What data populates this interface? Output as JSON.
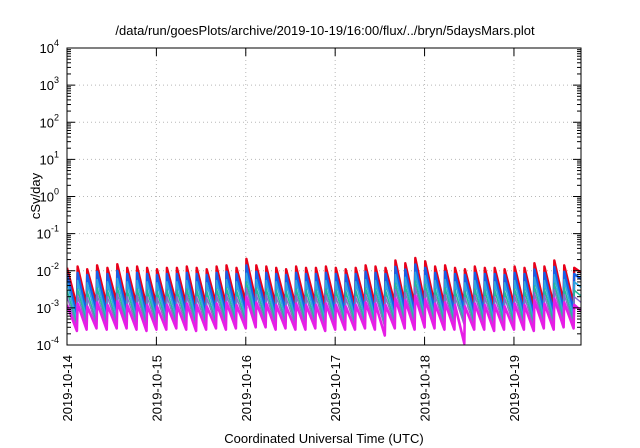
{
  "chart_data": {
    "type": "line",
    "title": "/data/run/goesPlots/archive/2019-10-19/16:00/flux/../bryn/5daysMars.plot",
    "xlabel": "Coordinated Universal Time (UTC)",
    "ylabel": "cSv/day",
    "y_scale": "log",
    "grid": true,
    "legend": "none",
    "xlim": [
      "2019-10-14T00:00",
      "2019-10-19T18:00"
    ],
    "ylim": [
      0.0001,
      10000
    ],
    "x_ticks": [
      "2019-10-14",
      "2019-10-15",
      "2019-10-16",
      "2019-10-17",
      "2019-10-18",
      "2019-10-19"
    ],
    "y_ticks": [
      {
        "base": "10",
        "exp": "-4",
        "value": 0.0001
      },
      {
        "base": "10",
        "exp": "-3",
        "value": 0.001
      },
      {
        "base": "10",
        "exp": "-2",
        "value": 0.01
      },
      {
        "base": "10",
        "exp": "-1",
        "value": 0.1
      },
      {
        "base": "10",
        "exp": "0",
        "value": 1
      },
      {
        "base": "10",
        "exp": "1",
        "value": 10
      },
      {
        "base": "10",
        "exp": "2",
        "value": 100
      },
      {
        "base": "10",
        "exp": "3",
        "value": 1000
      },
      {
        "base": "10",
        "exp": "4",
        "value": 10000
      }
    ],
    "x": [
      "2019-10-14T00:00",
      "2019-10-14T02:40",
      "2019-10-14T02:50",
      "2019-10-14T05:15",
      "2019-10-14T05:25",
      "2019-10-14T07:55",
      "2019-10-14T08:05",
      "2019-10-14T10:40",
      "2019-10-14T10:50",
      "2019-10-14T13:20",
      "2019-10-14T13:30",
      "2019-10-14T16:00",
      "2019-10-14T16:10",
      "2019-10-14T18:40",
      "2019-10-14T18:50",
      "2019-10-14T21:20",
      "2019-10-14T21:30",
      "2019-10-15T00:00",
      "2019-10-15T00:10",
      "2019-10-15T02:40",
      "2019-10-15T02:50",
      "2019-10-15T05:20",
      "2019-10-15T05:30",
      "2019-10-15T08:00",
      "2019-10-15T08:10",
      "2019-10-15T10:40",
      "2019-10-15T10:50",
      "2019-10-15T13:20",
      "2019-10-15T13:30",
      "2019-10-15T16:00",
      "2019-10-15T16:10",
      "2019-10-15T18:40",
      "2019-10-15T18:50",
      "2019-10-15T21:20",
      "2019-10-15T21:30",
      "2019-10-16T00:00",
      "2019-10-16T00:10",
      "2019-10-16T02:40",
      "2019-10-16T02:50",
      "2019-10-16T05:20",
      "2019-10-16T05:30",
      "2019-10-16T08:00",
      "2019-10-16T08:10",
      "2019-10-16T10:40",
      "2019-10-16T10:50",
      "2019-10-16T13:20",
      "2019-10-16T13:30",
      "2019-10-16T16:00",
      "2019-10-16T16:10",
      "2019-10-16T18:40",
      "2019-10-16T18:50",
      "2019-10-16T21:20",
      "2019-10-16T21:30",
      "2019-10-17T00:00",
      "2019-10-17T00:10",
      "2019-10-17T02:40",
      "2019-10-17T02:50",
      "2019-10-17T05:20",
      "2019-10-17T05:30",
      "2019-10-17T08:00",
      "2019-10-17T08:10",
      "2019-10-17T10:40",
      "2019-10-17T10:50",
      "2019-10-17T13:20",
      "2019-10-17T13:30",
      "2019-10-17T16:00",
      "2019-10-17T16:10",
      "2019-10-17T18:40",
      "2019-10-17T18:50",
      "2019-10-17T21:20",
      "2019-10-17T21:30",
      "2019-10-18T00:00",
      "2019-10-18T00:10",
      "2019-10-18T02:40",
      "2019-10-18T02:50",
      "2019-10-18T05:20",
      "2019-10-18T05:30",
      "2019-10-18T08:00",
      "2019-10-18T08:10",
      "2019-10-18T10:40",
      "2019-10-18T10:50",
      "2019-10-18T13:20",
      "2019-10-18T13:30",
      "2019-10-18T16:00",
      "2019-10-18T16:10",
      "2019-10-18T18:40",
      "2019-10-18T18:50",
      "2019-10-18T21:20",
      "2019-10-18T21:30",
      "2019-10-19T00:00",
      "2019-10-19T00:10",
      "2019-10-19T02:40",
      "2019-10-19T02:50",
      "2019-10-19T05:20",
      "2019-10-19T05:30",
      "2019-10-19T08:00",
      "2019-10-19T08:10",
      "2019-10-19T10:40",
      "2019-10-19T10:50",
      "2019-10-19T13:20",
      "2019-10-19T13:30",
      "2019-10-19T16:00",
      "2019-10-19T16:10",
      "2019-10-19T18:00"
    ],
    "series": [
      {
        "color": "#e8001a",
        "width": 2.4,
        "values": [
          0.012,
          0.0011,
          0.013,
          0.0012,
          0.011,
          0.0013,
          0.014,
          0.0012,
          0.012,
          0.0014,
          0.015,
          0.0013,
          0.012,
          0.0012,
          0.013,
          0.0011,
          0.012,
          0.0012,
          0.011,
          0.0012,
          0.012,
          0.0013,
          0.012,
          0.0012,
          0.013,
          0.0011,
          0.012,
          0.0012,
          0.011,
          0.0013,
          0.013,
          0.0012,
          0.014,
          0.0013,
          0.012,
          0.0014,
          0.021,
          0.0016,
          0.014,
          0.0015,
          0.013,
          0.0012,
          0.012,
          0.0013,
          0.011,
          0.0012,
          0.013,
          0.0012,
          0.012,
          0.0013,
          0.012,
          0.0011,
          0.013,
          0.0012,
          0.012,
          0.0012,
          0.011,
          0.0012,
          0.012,
          0.0013,
          0.014,
          0.0012,
          0.013,
          0.0011,
          0.012,
          0.0013,
          0.019,
          0.0013,
          0.016,
          0.0012,
          0.022,
          0.0014,
          0.018,
          0.0013,
          0.013,
          0.0012,
          0.014,
          0.0012,
          0.012,
          0.0013,
          0.011,
          0.0012,
          0.013,
          0.0012,
          0.012,
          0.0011,
          0.012,
          0.0012,
          0.011,
          0.0012,
          0.013,
          0.0012,
          0.012,
          0.0011,
          0.016,
          0.0013,
          0.013,
          0.0012,
          0.019,
          0.0014,
          0.014,
          0.0013,
          0.012,
          0.009
        ]
      },
      {
        "color": "#1560e8",
        "width": 2.4,
        "values": [
          0.0082,
          0.0006,
          0.0088,
          0.0007,
          0.0078,
          0.0008,
          0.0094,
          0.0007,
          0.0082,
          0.0008,
          0.01,
          0.0008,
          0.0082,
          0.0007,
          0.0088,
          0.0006,
          0.0082,
          0.0007,
          0.0078,
          0.0007,
          0.0082,
          0.0008,
          0.0082,
          0.0007,
          0.0088,
          0.0006,
          0.0082,
          0.0007,
          0.0078,
          0.0008,
          0.0088,
          0.0007,
          0.0094,
          0.0008,
          0.0082,
          0.0008,
          0.014,
          0.0009,
          0.0094,
          0.0009,
          0.0088,
          0.0007,
          0.0082,
          0.0008,
          0.0078,
          0.0007,
          0.0088,
          0.0007,
          0.0082,
          0.0008,
          0.0082,
          0.0006,
          0.0088,
          0.0007,
          0.0082,
          0.0007,
          0.0078,
          0.0007,
          0.0082,
          0.0008,
          0.0094,
          0.0007,
          0.0088,
          0.0006,
          0.0082,
          0.0008,
          0.0128,
          0.0008,
          0.0108,
          0.0007,
          0.0148,
          0.0008,
          0.012,
          0.0008,
          0.0088,
          0.0007,
          0.0094,
          0.0007,
          0.0082,
          0.0008,
          0.0078,
          0.0007,
          0.0088,
          0.0007,
          0.0082,
          0.0006,
          0.0082,
          0.0007,
          0.0078,
          0.0007,
          0.0088,
          0.0007,
          0.0082,
          0.0006,
          0.0108,
          0.0008,
          0.0088,
          0.0007,
          0.0128,
          0.0008,
          0.0094,
          0.0008,
          0.0082,
          0.006
        ]
      },
      {
        "color": "#2fa8e0",
        "width": 1.8,
        "values": [
          0.005,
          0.00045,
          0.0054,
          0.0005,
          0.0047,
          0.00055,
          0.0057,
          0.0005,
          0.005,
          0.00055,
          0.0061,
          0.00055,
          0.005,
          0.0005,
          0.0054,
          0.00045,
          0.005,
          0.0005,
          0.0047,
          0.0005,
          0.005,
          0.00055,
          0.005,
          0.0005,
          0.0054,
          0.00045,
          0.005,
          0.0005,
          0.0047,
          0.00055,
          0.0054,
          0.0005,
          0.0057,
          0.00055,
          0.005,
          0.00055,
          0.0085,
          0.0006,
          0.0057,
          0.0006,
          0.0054,
          0.0005,
          0.005,
          0.00055,
          0.0047,
          0.0005,
          0.0054,
          0.0005,
          0.005,
          0.00055,
          0.005,
          0.00045,
          0.0054,
          0.0005,
          0.005,
          0.0005,
          0.0047,
          0.0005,
          0.005,
          0.00055,
          0.0057,
          0.0005,
          0.0054,
          0.00045,
          0.005,
          0.00055,
          0.0078,
          0.00055,
          0.0066,
          0.0005,
          0.009,
          0.0006,
          0.0073,
          0.00055,
          0.0054,
          0.0005,
          0.0057,
          0.0005,
          0.005,
          0.00055,
          0.0047,
          0.0005,
          0.0054,
          0.0005,
          0.005,
          0.00045,
          0.005,
          0.0005,
          0.0047,
          0.0005,
          0.0054,
          0.0005,
          0.005,
          0.00045,
          0.0066,
          0.00055,
          0.0054,
          0.0005,
          0.0078,
          0.0006,
          0.0057,
          0.00055,
          0.005,
          0.0036
        ]
      },
      {
        "color": "#28b89a",
        "width": 1.6,
        "values": [
          0.003,
          0.00035,
          0.0032,
          0.0004,
          0.0028,
          0.0004,
          0.0034,
          0.0004,
          0.003,
          0.0004,
          0.0036,
          0.0004,
          0.003,
          0.0004,
          0.0032,
          0.00035,
          0.003,
          0.0004,
          0.0028,
          0.0004,
          0.003,
          0.0004,
          0.003,
          0.0004,
          0.0032,
          0.00035,
          0.003,
          0.0004,
          0.0028,
          0.0004,
          0.0032,
          0.0004,
          0.0034,
          0.0004,
          0.003,
          0.0004,
          0.005,
          0.00045,
          0.0034,
          0.00045,
          0.0032,
          0.0004,
          0.003,
          0.0004,
          0.0028,
          0.0004,
          0.0032,
          0.0004,
          0.003,
          0.0004,
          0.003,
          0.00035,
          0.0032,
          0.0004,
          0.003,
          0.0004,
          0.0028,
          0.0004,
          0.003,
          0.0004,
          0.0034,
          0.0004,
          0.0032,
          0.00035,
          0.003,
          0.0004,
          0.0046,
          0.0004,
          0.0039,
          0.0004,
          0.0053,
          0.00045,
          0.0043,
          0.0004,
          0.0032,
          0.0004,
          0.0034,
          0.0004,
          0.003,
          0.0004,
          0.0028,
          0.0004,
          0.0032,
          0.0004,
          0.003,
          0.00035,
          0.003,
          0.0004,
          0.0028,
          0.0004,
          0.0032,
          0.0004,
          0.003,
          0.00035,
          0.0039,
          0.0004,
          0.0032,
          0.0004,
          0.0046,
          0.00045,
          0.0034,
          0.0004,
          0.003,
          0.0021
        ]
      },
      {
        "color": "#8a6acb",
        "width": 1.4,
        "values": [
          0.002,
          0.0003,
          0.0022,
          0.00032,
          0.0019,
          0.00034,
          0.0023,
          0.00032,
          0.002,
          0.00034,
          0.0024,
          0.00034,
          0.002,
          0.00032,
          0.0022,
          0.0003,
          0.002,
          0.00032,
          0.0019,
          0.00032,
          0.002,
          0.00034,
          0.002,
          0.00032,
          0.0022,
          0.0003,
          0.002,
          0.00032,
          0.0019,
          0.00034,
          0.0022,
          0.00032,
          0.0023,
          0.00034,
          0.002,
          0.00034,
          0.0034,
          0.00036,
          0.0023,
          0.00036,
          0.0022,
          0.00032,
          0.002,
          0.00034,
          0.0019,
          0.00032,
          0.0022,
          0.00032,
          0.002,
          0.00034,
          0.002,
          0.0003,
          0.0022,
          0.00032,
          0.002,
          0.00032,
          0.0019,
          0.00032,
          0.002,
          0.00034,
          0.0023,
          0.00032,
          0.0022,
          0.0003,
          0.002,
          0.00034,
          0.0031,
          0.00034,
          0.0026,
          0.00032,
          0.0036,
          0.00036,
          0.0029,
          0.00034,
          0.0022,
          0.00032,
          0.0023,
          0.00032,
          0.002,
          0.00034,
          0.0019,
          0.00032,
          0.0022,
          0.00032,
          0.002,
          0.0003,
          0.002,
          0.00032,
          0.0019,
          0.00032,
          0.0022,
          0.00032,
          0.002,
          0.0003,
          0.0026,
          0.00034,
          0.0022,
          0.00032,
          0.0031,
          0.00036,
          0.0023,
          0.00034,
          0.002,
          0.0014
        ]
      },
      {
        "color": "#e61ee6",
        "width": 2.6,
        "values": [
          0.0012,
          0.00024,
          0.0013,
          0.00026,
          0.0011,
          0.00028,
          0.0014,
          0.00026,
          0.0012,
          0.00028,
          0.0015,
          0.00028,
          0.0012,
          0.00026,
          0.0013,
          0.00024,
          0.0012,
          0.00026,
          0.0011,
          0.00026,
          0.0012,
          0.00028,
          0.0012,
          0.00026,
          0.0013,
          0.00024,
          0.0012,
          0.00026,
          0.0011,
          0.00028,
          0.0013,
          0.00026,
          0.0014,
          0.00028,
          0.0012,
          0.00028,
          0.002,
          0.0003,
          0.0014,
          0.0003,
          0.0013,
          0.00026,
          0.0012,
          0.00028,
          0.0011,
          0.00026,
          0.0013,
          0.00026,
          0.0012,
          0.00028,
          0.0012,
          0.00024,
          0.0013,
          0.00026,
          0.0012,
          0.00026,
          0.0011,
          0.00026,
          0.0012,
          0.00028,
          0.0014,
          0.00026,
          0.0013,
          0.00018,
          0.0012,
          0.00028,
          0.0018,
          0.00028,
          0.0016,
          0.00026,
          0.0021,
          0.0003,
          0.0017,
          0.00028,
          0.0013,
          0.00026,
          0.0014,
          0.00026,
          0.0012,
          0.00011,
          0.0011,
          0.00026,
          0.0013,
          0.00026,
          0.0012,
          0.00024,
          0.0012,
          0.00026,
          0.0011,
          0.00026,
          0.0013,
          0.00026,
          0.0012,
          0.00024,
          0.0016,
          0.00028,
          0.0013,
          0.00026,
          0.0018,
          0.0003,
          0.0014,
          0.00028,
          0.0012,
          0.00085
        ]
      }
    ]
  }
}
